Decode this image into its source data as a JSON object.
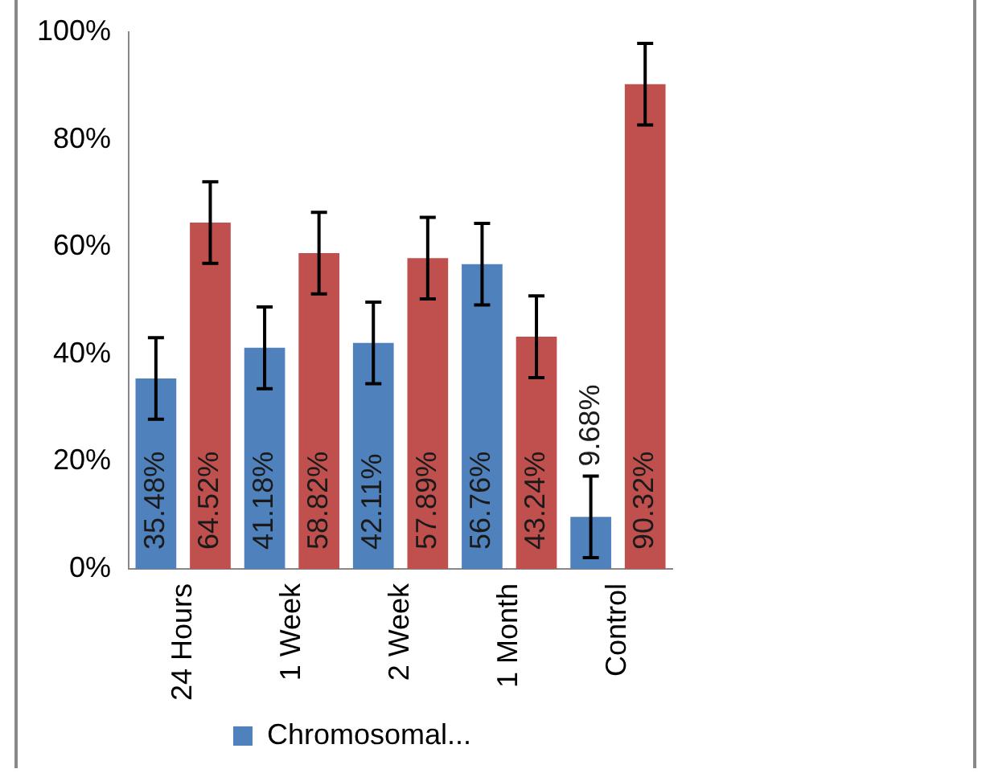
{
  "chart_data": {
    "type": "bar",
    "categories": [
      "24 Hours",
      "1 Week",
      "2 Week",
      "1 Month",
      "Control"
    ],
    "series": [
      {
        "name": "Chromosomal...",
        "color": "#4f81bd",
        "values": [
          35.48,
          41.18,
          42.11,
          56.76,
          9.68
        ],
        "errors": [
          7.6,
          7.6,
          7.6,
          7.6,
          7.6
        ],
        "value_labels": [
          "35.48%",
          "41.18%",
          "42.11%",
          "56.76%",
          "9.68%"
        ]
      },
      {
        "color": "#c0504d",
        "values": [
          64.52,
          58.82,
          57.89,
          43.24,
          90.32
        ],
        "errors": [
          7.6,
          7.6,
          7.6,
          7.6,
          7.6
        ],
        "value_labels": [
          "64.52%",
          "58.82%",
          "57.89%",
          "43.24%",
          "90.32%"
        ]
      }
    ],
    "ylim": [
      0,
      100
    ],
    "yticks": [
      {
        "value": 0,
        "label": "0%"
      },
      {
        "value": 20,
        "label": "20%"
      },
      {
        "value": 40,
        "label": "40%"
      },
      {
        "value": 60,
        "label": "60%"
      },
      {
        "value": 80,
        "label": "80%"
      },
      {
        "value": 100,
        "label": "100%"
      }
    ],
    "grid": false,
    "legend": "bottom"
  }
}
